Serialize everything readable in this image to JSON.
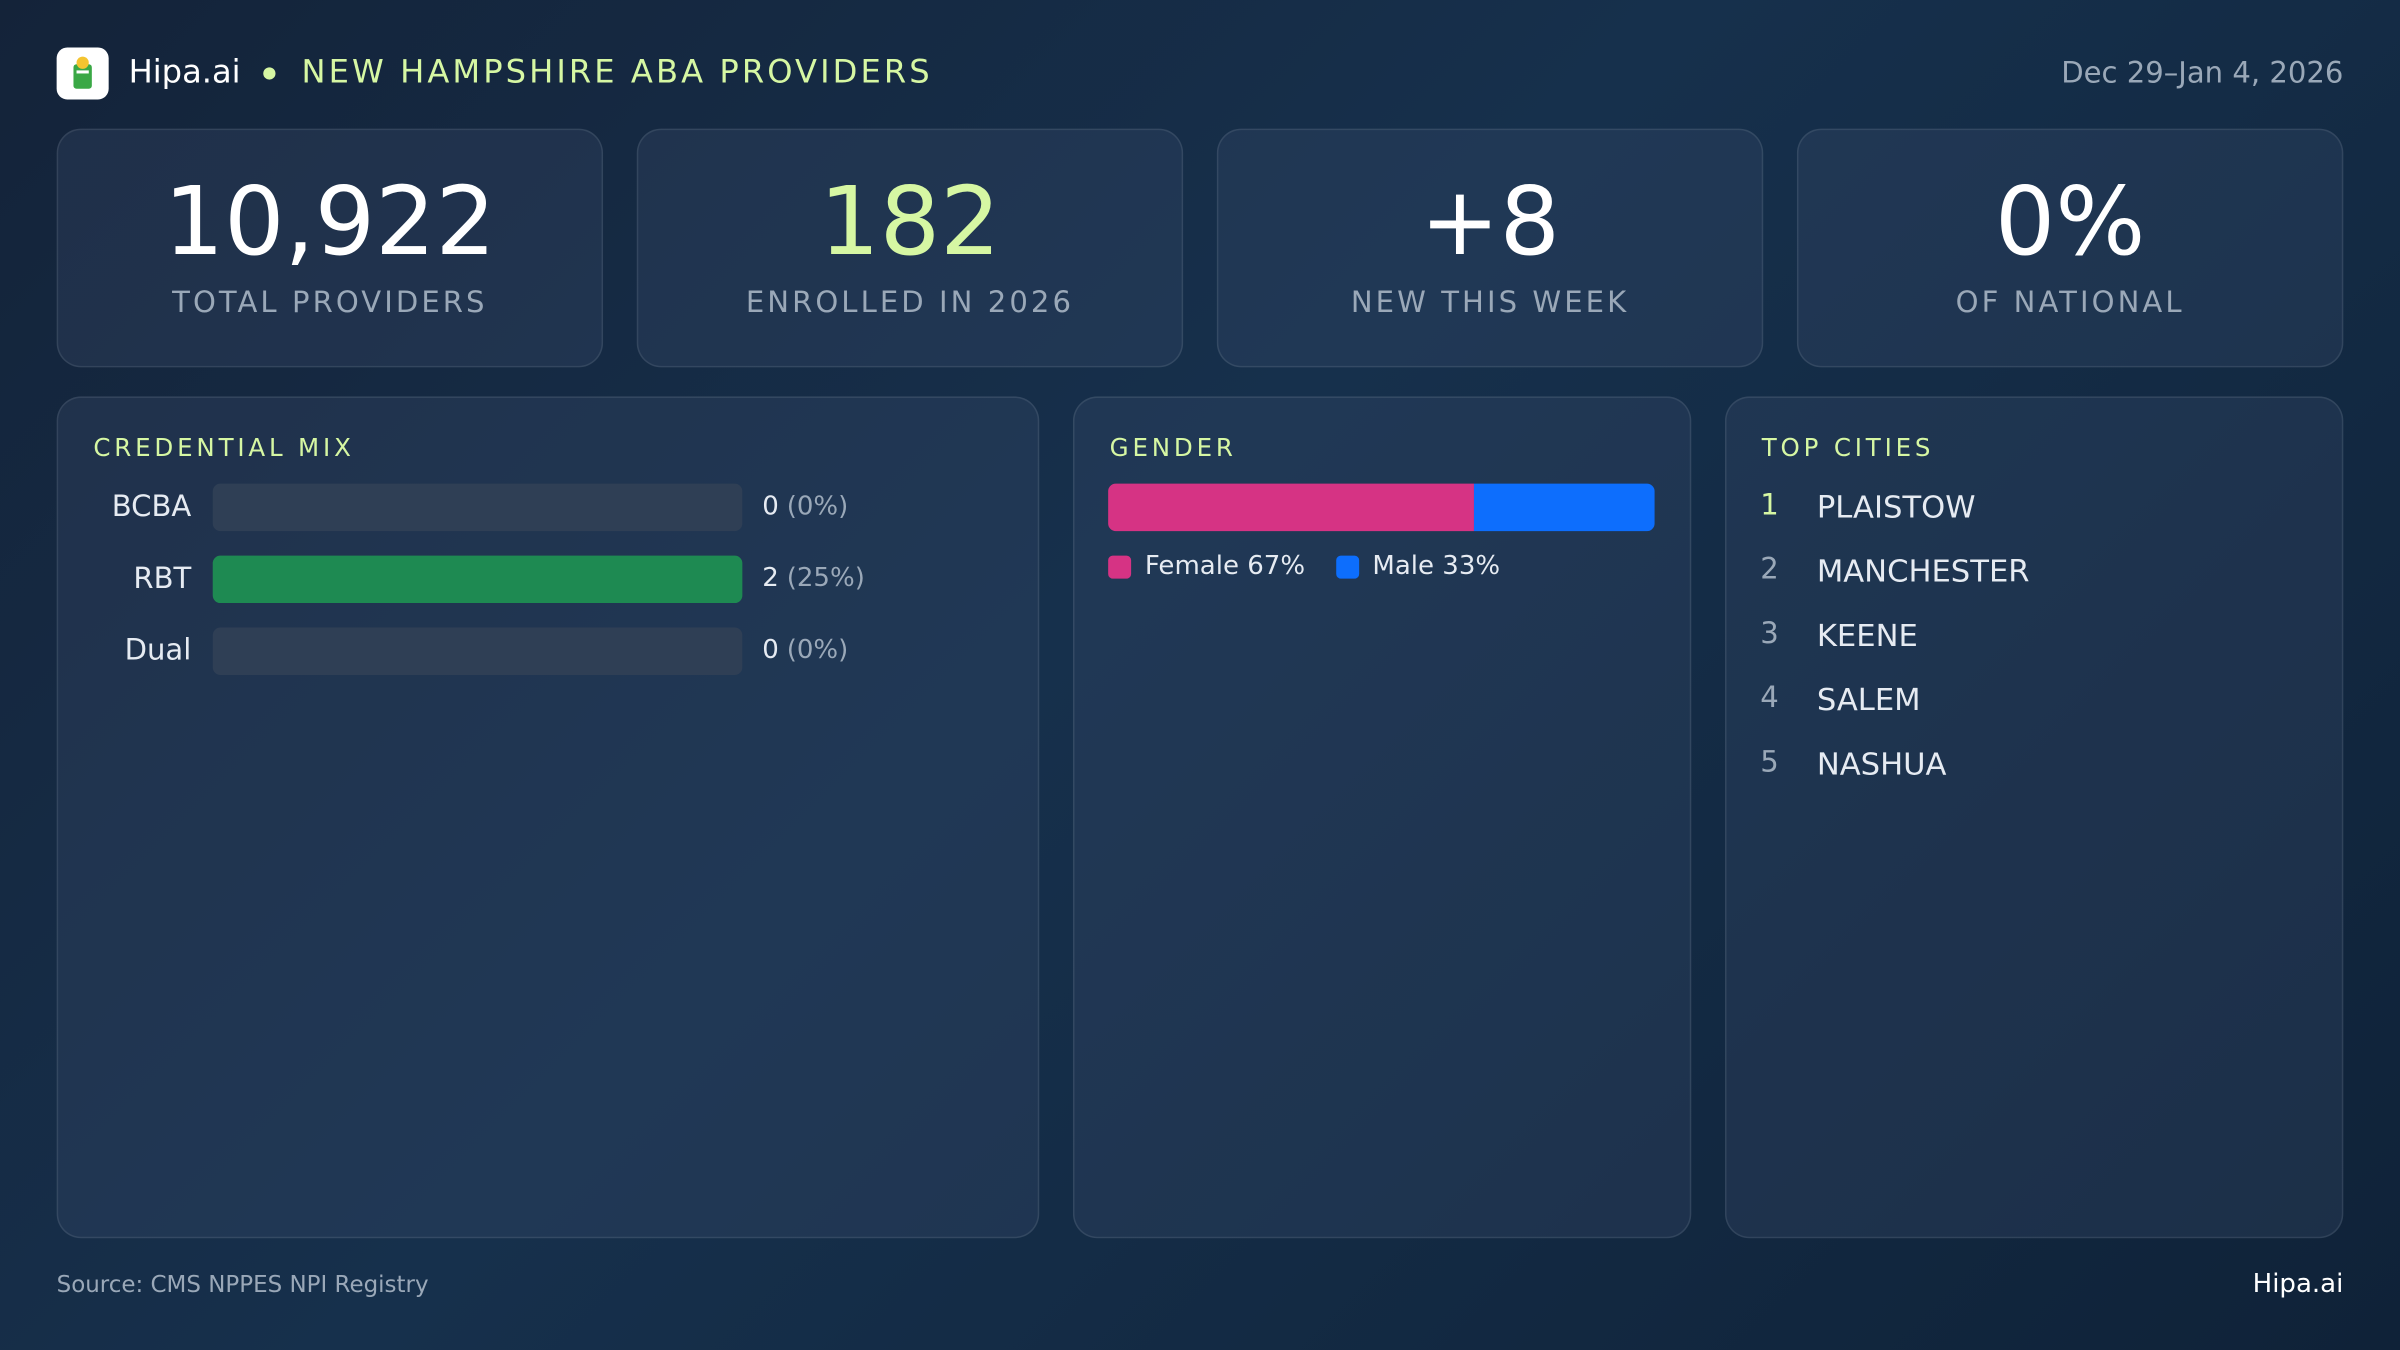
{
  "header": {
    "brand": "Hipa.ai",
    "title": "NEW HAMPSHIRE ABA PROVIDERS",
    "date_range": "Dec 29–Jan 4, 2026"
  },
  "kpis": [
    {
      "value": "10,922",
      "label": "TOTAL PROVIDERS",
      "color": "#ffffff"
    },
    {
      "value": "182",
      "label": "ENROLLED IN 2026",
      "color": "#d6f7a3"
    },
    {
      "value": "+8",
      "label": "NEW THIS WEEK",
      "color": "#ffffff"
    },
    {
      "value": "0%",
      "label": "OF NATIONAL",
      "color": "#ffffff"
    }
  ],
  "credential_mix": {
    "title": "CREDENTIAL MIX",
    "color": "#1e8a52",
    "rows": [
      {
        "label": "BCBA",
        "count": 0,
        "percent_label": "(0%)"
      },
      {
        "label": "RBT",
        "count": 2,
        "percent_label": "(25%)"
      },
      {
        "label": "Dual",
        "count": 0,
        "percent_label": "(0%)"
      }
    ]
  },
  "gender": {
    "title": "GENDER",
    "segments": [
      {
        "percent": 67,
        "label": "Female 67%",
        "color": "#d63384"
      },
      {
        "percent": 33,
        "label": "Male 33%",
        "color": "#0d6efd"
      }
    ]
  },
  "top_cities": {
    "title": "TOP CITIES",
    "items": [
      {
        "rank": "1",
        "name": "PLAISTOW"
      },
      {
        "rank": "2",
        "name": "MANCHESTER"
      },
      {
        "rank": "3",
        "name": "KEENE"
      },
      {
        "rank": "4",
        "name": "SALEM"
      },
      {
        "rank": "5",
        "name": "NASHUA"
      }
    ]
  },
  "footer": {
    "source": "Source: CMS NPPES NPI Registry",
    "brand": "Hipa.ai"
  }
}
